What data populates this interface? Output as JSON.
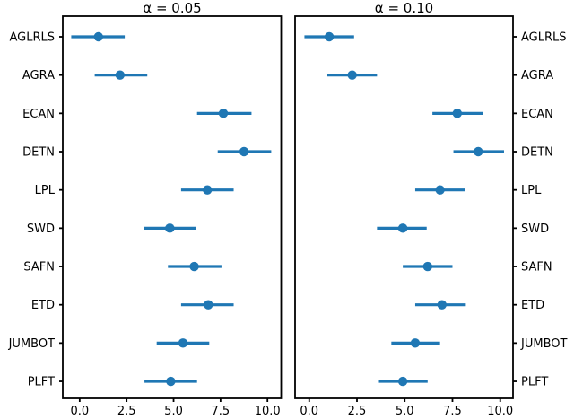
{
  "figure": {
    "background": "#ffffff",
    "accent_color": "#1f77b4",
    "text_color": "#000000"
  },
  "chart_data": [
    {
      "type": "scatter",
      "subtype": "horizontal-errorbar",
      "title": "α = 0.05",
      "categories": [
        "AGLRLS",
        "AGRA",
        "ECAN",
        "DETN",
        "LPL",
        "SWD",
        "SAFN",
        "ETD",
        "JUMBOT",
        "PLFT"
      ],
      "values": [
        1.0,
        2.15,
        7.65,
        8.75,
        6.8,
        4.8,
        6.1,
        6.85,
        5.5,
        4.85
      ],
      "ci_low": [
        -0.45,
        0.8,
        6.25,
        7.35,
        5.4,
        3.4,
        4.7,
        5.4,
        4.1,
        3.45
      ],
      "ci_high": [
        2.4,
        3.6,
        9.15,
        10.2,
        8.2,
        6.2,
        7.55,
        8.2,
        6.9,
        6.25
      ],
      "xticks": [
        0.0,
        2.5,
        5.0,
        7.5,
        10.0
      ],
      "xtick_labels": [
        "0.0",
        "2.5",
        "5.0",
        "7.5",
        "10.0"
      ],
      "xlim": [
        -0.9,
        10.73
      ],
      "ytick_side": "left",
      "grid": false,
      "legend": null,
      "marker_color": "#1f77b4"
    },
    {
      "type": "scatter",
      "subtype": "horizontal-errorbar",
      "title": "α = 0.10",
      "categories": [
        "AGLRLS",
        "AGRA",
        "ECAN",
        "DETN",
        "LPL",
        "SWD",
        "SAFN",
        "ETD",
        "JUMBOT",
        "PLFT"
      ],
      "values": [
        1.05,
        2.25,
        7.75,
        8.85,
        6.85,
        4.9,
        6.2,
        6.95,
        5.55,
        4.9
      ],
      "ci_low": [
        -0.25,
        0.95,
        6.45,
        7.55,
        5.55,
        3.55,
        4.9,
        5.55,
        4.3,
        3.65
      ],
      "ci_high": [
        2.35,
        3.55,
        9.1,
        10.2,
        8.15,
        6.15,
        7.5,
        8.2,
        6.85,
        6.2
      ],
      "xticks": [
        0.0,
        2.5,
        5.0,
        7.5,
        10.0
      ],
      "xtick_labels": [
        "0.0",
        "2.5",
        "5.0",
        "7.5",
        "10.0"
      ],
      "xlim": [
        -0.74,
        10.67
      ],
      "ytick_side": "right",
      "grid": false,
      "legend": null,
      "marker_color": "#1f77b4"
    }
  ]
}
